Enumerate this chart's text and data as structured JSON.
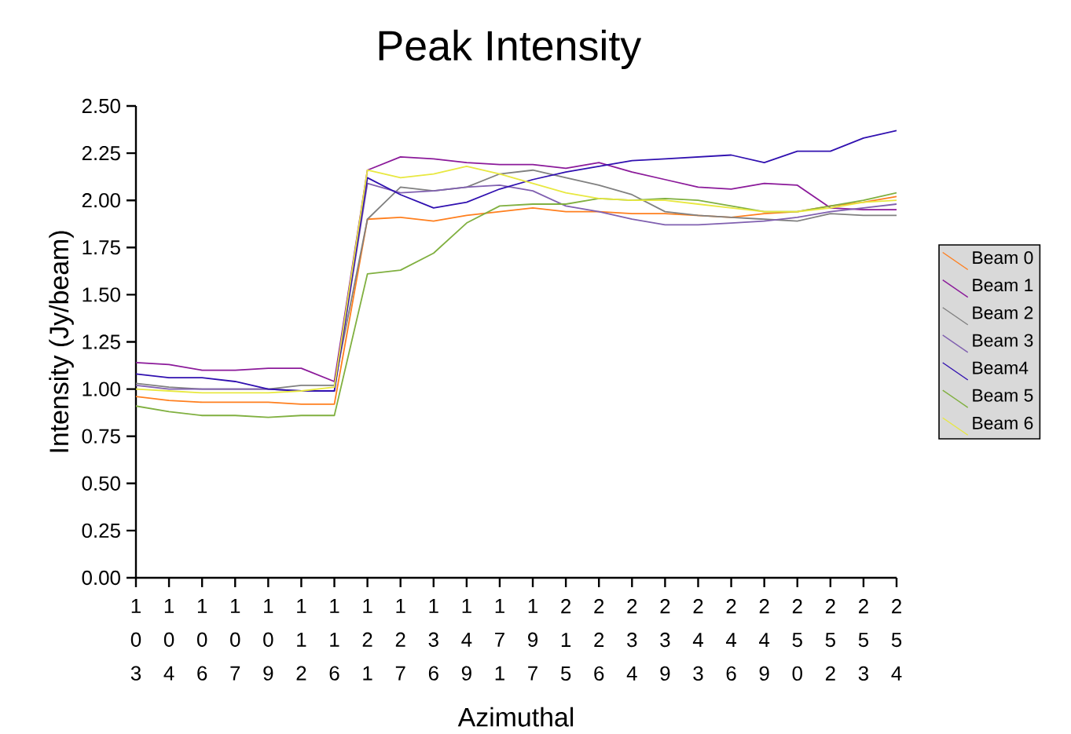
{
  "chart_data": {
    "type": "line",
    "title": "Peak Intensity",
    "xlabel": "Azimuthal",
    "ylabel": "Intensity (Jy/beam)",
    "categories": [
      "103",
      "104",
      "106",
      "107",
      "109",
      "112",
      "116",
      "121",
      "127",
      "136",
      "149",
      "171",
      "197",
      "215",
      "226",
      "234",
      "239",
      "243",
      "246",
      "249",
      "250",
      "252",
      "253",
      "254"
    ],
    "series": [
      {
        "name": "Beam 0",
        "color": "#ff7f1e",
        "values": [
          0.96,
          0.94,
          0.93,
          0.93,
          0.93,
          0.92,
          0.92,
          1.9,
          1.91,
          1.89,
          1.92,
          1.94,
          1.96,
          1.94,
          1.94,
          1.93,
          1.93,
          1.92,
          1.91,
          1.93,
          1.94,
          1.97,
          1.99,
          2.02
        ]
      },
      {
        "name": "Beam 1",
        "color": "#8b1a9a",
        "values": [
          1.14,
          1.13,
          1.1,
          1.1,
          1.11,
          1.11,
          1.04,
          2.16,
          2.23,
          2.22,
          2.2,
          2.19,
          2.19,
          2.17,
          2.2,
          2.15,
          2.11,
          2.07,
          2.06,
          2.09,
          2.08,
          1.96,
          1.95,
          1.95
        ]
      },
      {
        "name": "Beam 2",
        "color": "#808080",
        "values": [
          1.03,
          1.01,
          1.0,
          1.0,
          1.0,
          1.02,
          1.02,
          1.9,
          2.07,
          2.05,
          2.07,
          2.14,
          2.16,
          2.12,
          2.08,
          2.03,
          1.94,
          1.92,
          1.91,
          1.9,
          1.89,
          1.93,
          1.92,
          1.92
        ]
      },
      {
        "name": "Beam 3",
        "color": "#8060b0",
        "values": [
          1.02,
          1.0,
          1.0,
          1.0,
          1.0,
          0.99,
          0.99,
          2.09,
          2.04,
          2.05,
          2.07,
          2.08,
          2.05,
          1.97,
          1.94,
          1.9,
          1.87,
          1.87,
          1.88,
          1.89,
          1.91,
          1.94,
          1.96,
          1.98
        ]
      },
      {
        "name": "Beam4",
        "color": "#3010b0",
        "values": [
          1.08,
          1.06,
          1.06,
          1.04,
          1.0,
          0.99,
          0.99,
          2.12,
          2.03,
          1.96,
          1.99,
          2.06,
          2.11,
          2.15,
          2.18,
          2.21,
          2.22,
          2.23,
          2.24,
          2.2,
          2.26,
          2.26,
          2.33,
          2.37
        ]
      },
      {
        "name": "Beam 5",
        "color": "#80b040",
        "values": [
          0.91,
          0.88,
          0.86,
          0.86,
          0.85,
          0.86,
          0.86,
          1.61,
          1.63,
          1.72,
          1.88,
          1.97,
          1.98,
          1.98,
          2.01,
          2.0,
          2.01,
          2.0,
          1.97,
          1.94,
          1.94,
          1.97,
          2.0,
          2.04
        ]
      },
      {
        "name": "Beam 6",
        "color": "#e8e840",
        "values": [
          1.0,
          0.99,
          0.98,
          0.98,
          0.98,
          0.99,
          1.01,
          2.16,
          2.12,
          2.14,
          2.18,
          2.14,
          2.09,
          2.04,
          2.01,
          2.0,
          2.0,
          1.98,
          1.96,
          1.94,
          1.94,
          1.96,
          1.99,
          2.0
        ]
      }
    ],
    "ylim": [
      0,
      2.5
    ],
    "yticks": [
      {
        "value": 0,
        "label": "0.00"
      },
      {
        "value": 0.25,
        "label": "0.25"
      },
      {
        "value": 0.5,
        "label": "0.50"
      },
      {
        "value": 0.75,
        "label": "0.75"
      },
      {
        "value": 1,
        "label": "1.00"
      },
      {
        "value": 1.25,
        "label": "1.25"
      },
      {
        "value": 1.5,
        "label": "1.50"
      },
      {
        "value": 1.75,
        "label": "1.75"
      },
      {
        "value": 2,
        "label": "2.00"
      },
      {
        "value": 2.25,
        "label": "2.25"
      },
      {
        "value": 2.5,
        "label": "2.50"
      }
    ],
    "grid": false,
    "legend": "right",
    "marker": "none",
    "line_style": "solid"
  }
}
